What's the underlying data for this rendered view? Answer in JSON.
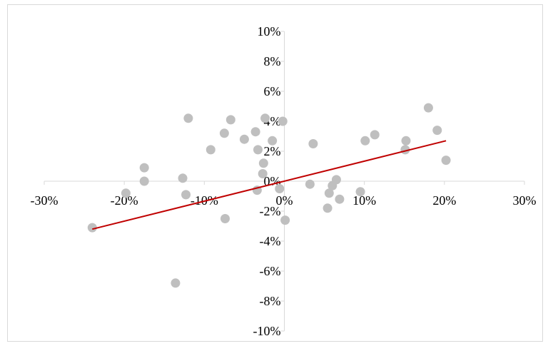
{
  "chart_data": {
    "type": "scatter",
    "title": "",
    "xlabel": "",
    "ylabel": "",
    "xlim": [
      -0.3,
      0.3
    ],
    "ylim": [
      -0.1,
      0.1
    ],
    "x_ticks": [
      -0.3,
      -0.2,
      -0.1,
      0.0,
      0.1,
      0.2,
      0.3
    ],
    "y_ticks": [
      -0.1,
      -0.08,
      -0.06,
      -0.04,
      -0.02,
      0.0,
      0.02,
      0.04,
      0.06,
      0.08,
      0.1
    ],
    "x_tick_labels": [
      "-30%",
      "-20%",
      "-10%",
      "0%",
      "10%",
      "20%",
      "30%"
    ],
    "y_tick_labels": [
      "-10%",
      "-8%",
      "-6%",
      "-4%",
      "-2%",
      "0%",
      "2%",
      "4%",
      "6%",
      "8%",
      "10%"
    ],
    "grid": false,
    "legend": "none",
    "point_color": "#bfbfbf",
    "trendline_color": "#c00000",
    "points": [
      {
        "x": -0.24,
        "y": -0.031
      },
      {
        "x": -0.198,
        "y": -0.008
      },
      {
        "x": -0.175,
        "y": 0.009
      },
      {
        "x": -0.175,
        "y": 0.0
      },
      {
        "x": -0.136,
        "y": -0.068
      },
      {
        "x": -0.127,
        "y": 0.002
      },
      {
        "x": -0.123,
        "y": -0.009
      },
      {
        "x": -0.12,
        "y": 0.042
      },
      {
        "x": -0.092,
        "y": 0.021
      },
      {
        "x": -0.075,
        "y": 0.032
      },
      {
        "x": -0.074,
        "y": -0.025
      },
      {
        "x": -0.067,
        "y": 0.041
      },
      {
        "x": -0.05,
        "y": 0.028
      },
      {
        "x": -0.036,
        "y": 0.033
      },
      {
        "x": -0.034,
        "y": -0.006
      },
      {
        "x": -0.033,
        "y": 0.021
      },
      {
        "x": -0.027,
        "y": 0.005
      },
      {
        "x": -0.026,
        "y": 0.012
      },
      {
        "x": -0.024,
        "y": 0.042
      },
      {
        "x": -0.015,
        "y": 0.027
      },
      {
        "x": -0.006,
        "y": -0.005
      },
      {
        "x": -0.002,
        "y": 0.04
      },
      {
        "x": 0.001,
        "y": -0.026
      },
      {
        "x": 0.032,
        "y": -0.002
      },
      {
        "x": 0.036,
        "y": 0.025
      },
      {
        "x": 0.054,
        "y": -0.018
      },
      {
        "x": 0.056,
        "y": -0.008
      },
      {
        "x": 0.06,
        "y": -0.003
      },
      {
        "x": 0.065,
        "y": 0.001
      },
      {
        "x": 0.069,
        "y": -0.012
      },
      {
        "x": 0.095,
        "y": -0.007
      },
      {
        "x": 0.101,
        "y": 0.027
      },
      {
        "x": 0.113,
        "y": 0.031
      },
      {
        "x": 0.151,
        "y": 0.021
      },
      {
        "x": 0.152,
        "y": 0.027
      },
      {
        "x": 0.18,
        "y": 0.049
      },
      {
        "x": 0.191,
        "y": 0.034
      },
      {
        "x": 0.202,
        "y": 0.014
      }
    ],
    "trendline": {
      "x": [
        -0.24,
        0.202
      ],
      "y": [
        -0.032,
        0.027
      ]
    }
  }
}
